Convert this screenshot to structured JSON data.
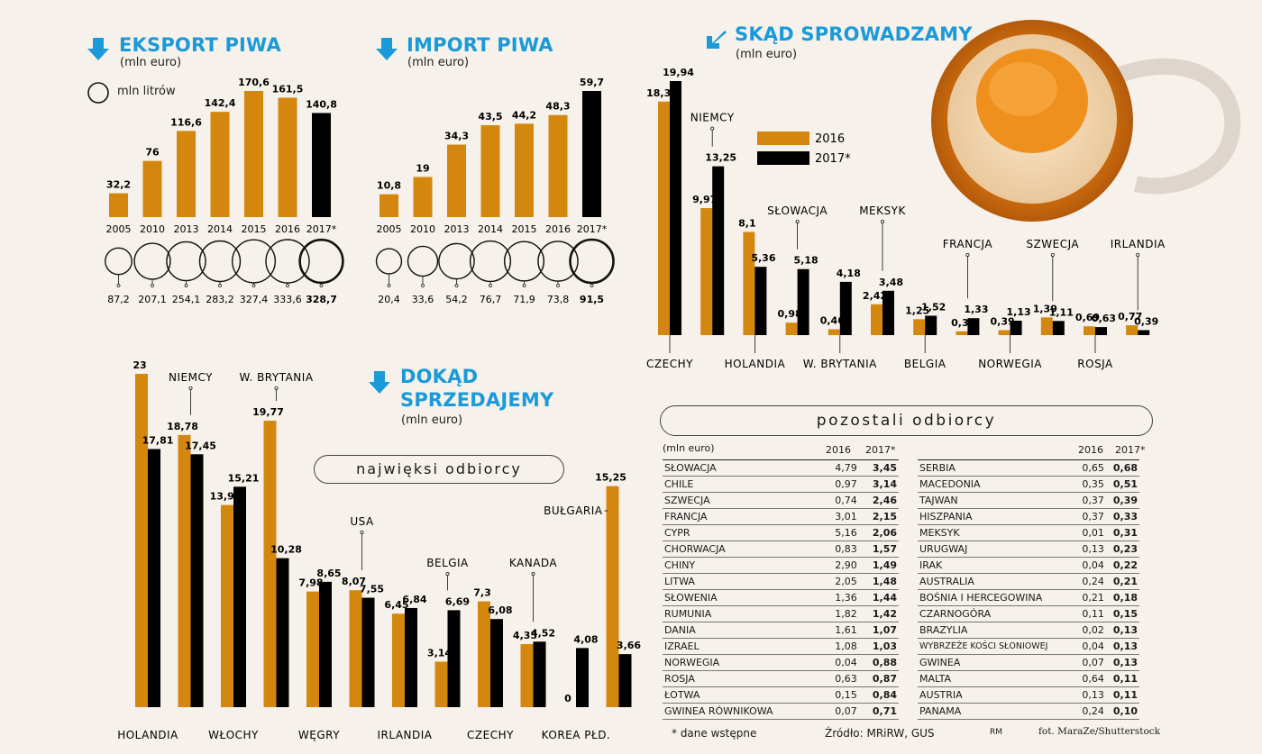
{
  "colors": {
    "y2016": "#d4870e",
    "y2017": "#000000",
    "accent": "#1a9ad9"
  },
  "export": {
    "title": "EKSPORT PIWA",
    "unit": "(mln euro)",
    "legend_circle": "mln litrów",
    "categories": [
      "2005",
      "2010",
      "2013",
      "2014",
      "2015",
      "2016",
      "2017*"
    ],
    "values": [
      32.2,
      76,
      116.6,
      142.4,
      170.6,
      161.5,
      140.8
    ],
    "value_labels": [
      "32,2",
      "76",
      "116,6",
      "142,4",
      "170,6",
      "161,5",
      "140,8"
    ],
    "litres": [
      87.2,
      207.1,
      254.1,
      283.2,
      327.4,
      333.6,
      328.7
    ],
    "litre_labels": [
      "87,2",
      "207,1",
      "254,1",
      "283,2",
      "327,4",
      "333,6",
      "328,7"
    ]
  },
  "import": {
    "title": "IMPORT PIWA",
    "unit": "(mln euro)",
    "categories": [
      "2005",
      "2010",
      "2013",
      "2014",
      "2015",
      "2016",
      "2017*"
    ],
    "values": [
      10.8,
      19,
      34.3,
      43.5,
      44.2,
      48.3,
      59.7
    ],
    "value_labels": [
      "10,8",
      "19",
      "34,3",
      "43,5",
      "44,2",
      "48,3",
      "59,7"
    ],
    "litres": [
      20.4,
      33.6,
      54.2,
      76.7,
      71.9,
      73.8,
      91.5
    ],
    "litre_labels": [
      "20,4",
      "33,6",
      "54,2",
      "76,7",
      "71,9",
      "73,8",
      "91,5"
    ]
  },
  "sources": {
    "title": "SKĄD SPROWADZAMY",
    "unit": "(mln euro)",
    "legend": [
      "2016",
      "2017*"
    ],
    "countries": [
      "CZECHY",
      "NIEMCY",
      "HOLANDIA",
      "SŁOWACJA",
      "W. BRYTANIA",
      "MEKSYK",
      "BELGIA",
      "FRANCJA",
      "NORWEGIA",
      "SZWECJA",
      "ROSJA",
      "IRLANDIA"
    ],
    "v2016": [
      18.33,
      9.97,
      8.1,
      0.98,
      0.46,
      2.42,
      1.25,
      0.3,
      0.39,
      1.39,
      0.69,
      0.77
    ],
    "v2017": [
      19.94,
      13.25,
      5.36,
      5.18,
      4.18,
      3.48,
      1.52,
      1.33,
      1.13,
      1.11,
      0.63,
      0.39
    ],
    "l2016": [
      "18,33",
      "9,97",
      "8,1",
      "0,98",
      "0,46",
      "2,42",
      "1,25",
      "0,3",
      "0,39",
      "1,39",
      "0,69",
      "0,77"
    ],
    "l2017": [
      "19,94",
      "13,25",
      "5,36",
      "5,18",
      "4,18",
      "3,48",
      "1,52",
      "1,33",
      "1,13",
      "1,11",
      "0,63",
      "0,39"
    ]
  },
  "destinations": {
    "title_line1": "DOKĄD",
    "title_line2": "SPRZEDAJEMY",
    "unit": "(mln euro)",
    "pill": "najwięksi odbiorcy",
    "countries": [
      "HOLANDIA",
      "NIEMCY",
      "WŁOCHY",
      "W. BRYTANIA",
      "WĘGRY",
      "USA",
      "IRLANDIA",
      "BELGIA",
      "CZECHY",
      "KANADA",
      "KOREA PŁD.",
      "BUŁGARIA"
    ],
    "v2016": [
      23,
      18.78,
      13.95,
      19.77,
      7.98,
      8.07,
      6.45,
      3.14,
      7.3,
      4.35,
      0,
      15.25
    ],
    "v2017": [
      17.81,
      17.45,
      15.21,
      10.28,
      8.65,
      7.55,
      6.84,
      6.69,
      6.08,
      4.52,
      4.08,
      3.66
    ],
    "l2016": [
      "23",
      "18,78",
      "13,95",
      "19,77",
      "7,98",
      "8,07",
      "6,45",
      "3,14",
      "7,3",
      "4,35",
      "0",
      "15,25"
    ],
    "l2017": [
      "17,81",
      "17,45",
      "15,21",
      "10,28",
      "8,65",
      "7,55",
      "6,84",
      "6,69",
      "6,08",
      "4,52",
      "4,08",
      "3,66"
    ]
  },
  "others": {
    "pill": "pozostali odbiorcy",
    "unit_header": "(mln euro)",
    "col2016": "2016",
    "col2017": "2017*",
    "left": [
      [
        "SŁOWACJA",
        "4,79",
        "3,45"
      ],
      [
        "CHILE",
        "0,97",
        "3,14"
      ],
      [
        "SZWECJA",
        "0,74",
        "2,46"
      ],
      [
        "FRANCJA",
        "3,01",
        "2,15"
      ],
      [
        "CYPR",
        "5,16",
        "2,06"
      ],
      [
        "CHORWACJA",
        "0,83",
        "1,57"
      ],
      [
        "CHINY",
        "2,90",
        "1,49"
      ],
      [
        "LITWA",
        "2,05",
        "1,48"
      ],
      [
        "SŁOWENIA",
        "1,36",
        "1,44"
      ],
      [
        "RUMUNIA",
        "1,82",
        "1,42"
      ],
      [
        "DANIA",
        "1,61",
        "1,07"
      ],
      [
        "IZRAEL",
        "1,08",
        "1,03"
      ],
      [
        "NORWEGIA",
        "0,04",
        "0,88"
      ],
      [
        "ROSJA",
        "0,63",
        "0,87"
      ],
      [
        "ŁOTWA",
        "0,15",
        "0,84"
      ],
      [
        "GWINEA RÓWNIKOWA",
        "0,07",
        "0,71"
      ]
    ],
    "right": [
      [
        "SERBIA",
        "0,65",
        "0,68"
      ],
      [
        "MACEDONIA",
        "0,35",
        "0,51"
      ],
      [
        "TAJWAN",
        "0,37",
        "0,39"
      ],
      [
        "HISZPANIA",
        "0,37",
        "0,33"
      ],
      [
        "MEKSYK",
        "0,01",
        "0,31"
      ],
      [
        "URUGWAJ",
        "0,13",
        "0,23"
      ],
      [
        "IRAK",
        "0,04",
        "0,22"
      ],
      [
        "AUSTRALIA",
        "0,24",
        "0,21"
      ],
      [
        "BOŚNIA I HERCEGOWINA",
        "0,21",
        "0,18"
      ],
      [
        "CZARNOGÓRA",
        "0,11",
        "0,15"
      ],
      [
        "BRAZYLIA",
        "0,02",
        "0,13"
      ],
      [
        "WYBRZEŻE KOŚCI SŁONIOWEJ",
        "0,04",
        "0,13"
      ],
      [
        "GWINEA",
        "0,07",
        "0,13"
      ],
      [
        "MALTA",
        "0,64",
        "0,11"
      ],
      [
        "AUSTRIA",
        "0,13",
        "0,11"
      ],
      [
        "PANAMA",
        "0,24",
        "0,10"
      ]
    ]
  },
  "footer": {
    "note": "* dane wstępne",
    "source": "Źródło: MRiRW, GUS",
    "initials": "RM",
    "photo": "fot. MaraZe/Shutterstock"
  },
  "chart_data": [
    {
      "type": "bar",
      "title": "EKSPORT PIWA",
      "ylabel": "(mln euro)",
      "categories": [
        "2005",
        "2010",
        "2013",
        "2014",
        "2015",
        "2016",
        "2017*"
      ],
      "series": [
        {
          "name": "mln euro",
          "values": [
            32.2,
            76,
            116.6,
            142.4,
            170.6,
            161.5,
            140.8
          ]
        },
        {
          "name": "mln litrów",
          "values": [
            87.2,
            207.1,
            254.1,
            283.2,
            327.4,
            333.6,
            328.7
          ]
        }
      ]
    },
    {
      "type": "bar",
      "title": "IMPORT PIWA",
      "ylabel": "(mln euro)",
      "categories": [
        "2005",
        "2010",
        "2013",
        "2014",
        "2015",
        "2016",
        "2017*"
      ],
      "series": [
        {
          "name": "mln euro",
          "values": [
            10.8,
            19,
            34.3,
            43.5,
            44.2,
            48.3,
            59.7
          ]
        },
        {
          "name": "mln litrów",
          "values": [
            20.4,
            33.6,
            54.2,
            76.7,
            71.9,
            73.8,
            91.5
          ]
        }
      ]
    },
    {
      "type": "bar",
      "title": "SKĄD SPROWADZAMY",
      "ylabel": "(mln euro)",
      "categories": [
        "CZECHY",
        "NIEMCY",
        "HOLANDIA",
        "SŁOWACJA",
        "W. BRYTANIA",
        "MEKSYK",
        "BELGIA",
        "FRANCJA",
        "NORWEGIA",
        "SZWECJA",
        "ROSJA",
        "IRLANDIA"
      ],
      "series": [
        {
          "name": "2016",
          "values": [
            18.33,
            9.97,
            8.1,
            0.98,
            0.46,
            2.42,
            1.25,
            0.3,
            0.39,
            1.39,
            0.69,
            0.77
          ]
        },
        {
          "name": "2017*",
          "values": [
            19.94,
            13.25,
            5.36,
            5.18,
            4.18,
            3.48,
            1.52,
            1.33,
            1.13,
            1.11,
            0.63,
            0.39
          ]
        }
      ]
    },
    {
      "type": "bar",
      "title": "DOKĄD SPRZEDAJEMY",
      "ylabel": "(mln euro)",
      "categories": [
        "HOLANDIA",
        "NIEMCY",
        "WŁOCHY",
        "W. BRYTANIA",
        "WĘGRY",
        "USA",
        "IRLANDIA",
        "BELGIA",
        "CZECHY",
        "KANADA",
        "KOREA PŁD.",
        "BUŁGARIA"
      ],
      "series": [
        {
          "name": "2016",
          "values": [
            23,
            18.78,
            13.95,
            19.77,
            7.98,
            8.07,
            6.45,
            3.14,
            7.3,
            4.35,
            0,
            15.25
          ]
        },
        {
          "name": "2017*",
          "values": [
            17.81,
            17.45,
            15.21,
            10.28,
            8.65,
            7.55,
            6.84,
            6.69,
            6.08,
            4.52,
            4.08,
            3.66
          ]
        }
      ]
    }
  ]
}
